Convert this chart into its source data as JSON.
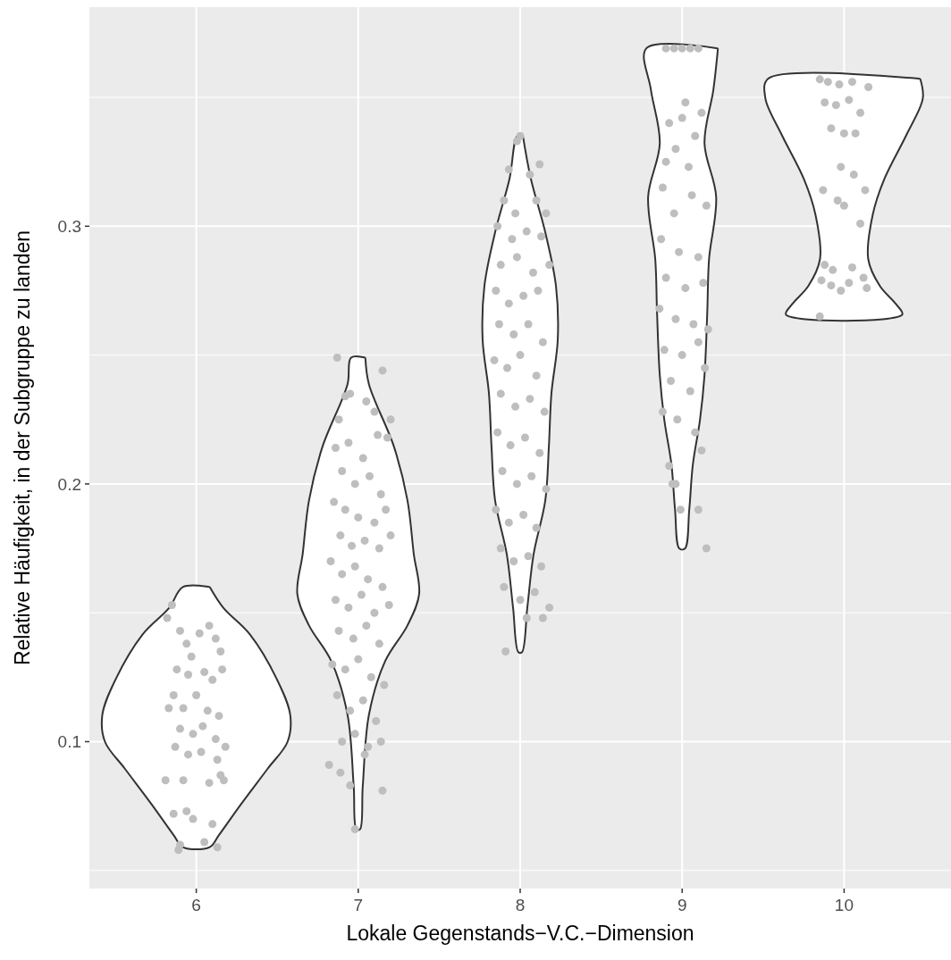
{
  "chart_data": {
    "type": "scatter",
    "xlabel": "Lokale Gegenstands−V.C.−Dimension",
    "ylabel": "Relative Häufigkeit, in der Subgruppe zu landen",
    "xlim": [
      5.34,
      10.66
    ],
    "ylim": [
      0.043,
      0.385
    ],
    "xticks": [
      6,
      7,
      8,
      9,
      10
    ],
    "yticks": [
      {
        "value": 0.05,
        "label": null
      },
      0.1,
      {
        "value": 0.15,
        "label": null
      },
      0.2,
      {
        "value": 0.25,
        "label": null
      },
      0.3,
      {
        "value": 0.35,
        "label": null
      }
    ],
    "grid": true,
    "series": [
      {
        "type": "area",
        "color": "#333333",
        "x": [
          6.083,
          6.166,
          6.331,
          6.497,
          6.58,
          6.564,
          6.442,
          6.276,
          6.138,
          6.083,
          5.917,
          5.862,
          5.724,
          5.558,
          5.436,
          5.42,
          5.503,
          5.669,
          5.834,
          5.917,
          6.083
        ],
        "values": [
          0.16,
          0.152,
          0.1416,
          0.1243,
          0.1104,
          0.1,
          0.0896,
          0.0757,
          0.0636,
          0.0591,
          0.0591,
          0.0636,
          0.0757,
          0.0896,
          0.1,
          0.1104,
          0.1243,
          0.1416,
          0.152,
          0.16,
          0.16
        ]
      },
      {
        "type": "area",
        "color": "#333333",
        "x": [
          7.044,
          7.066,
          7.221,
          7.304,
          7.343,
          7.376,
          7.304,
          7.166,
          7.066,
          7.028,
          7.011,
          6.989,
          6.972,
          6.934,
          6.834,
          6.696,
          6.624,
          6.657,
          6.696,
          6.779,
          6.934,
          6.956,
          7.044
        ],
        "values": [
          0.249,
          0.2387,
          0.2144,
          0.1936,
          0.1728,
          0.1572,
          0.1451,
          0.1312,
          0.1104,
          0.0827,
          0.066,
          0.066,
          0.0827,
          0.1104,
          0.1312,
          0.1451,
          0.1572,
          0.1728,
          0.1936,
          0.2144,
          0.2387,
          0.249,
          0.249
        ]
      },
      {
        "type": "area",
        "color": "#333333",
        "x": [
          8.017,
          8.066,
          8.155,
          8.221,
          8.232,
          8.193,
          8.177,
          8.155,
          8.083,
          8.044,
          8.011,
          7.989,
          7.956,
          7.917,
          7.845,
          7.823,
          7.807,
          7.768,
          7.779,
          7.845,
          7.934,
          7.983,
          8.017
        ],
        "values": [
          0.335,
          0.3184,
          0.2976,
          0.2768,
          0.256,
          0.2352,
          0.2144,
          0.1936,
          0.1728,
          0.152,
          0.1347,
          0.1347,
          0.152,
          0.1728,
          0.1936,
          0.2144,
          0.2352,
          0.256,
          0.2768,
          0.2976,
          0.3184,
          0.335,
          0.335
        ]
      },
      {
        "type": "area",
        "color": "#333333",
        "x": [
          9.221,
          9.193,
          9.138,
          9.21,
          9.166,
          9.155,
          9.138,
          9.11,
          9.066,
          9.044,
          9.017,
          8.983,
          8.956,
          8.934,
          8.89,
          8.862,
          8.845,
          8.834,
          8.79,
          8.862,
          8.807,
          8.779,
          9.221
        ],
        "values": [
          0.369,
          0.353,
          0.3322,
          0.3114,
          0.2872,
          0.2664,
          0.2421,
          0.2248,
          0.2075,
          0.1901,
          0.1749,
          0.1749,
          0.1901,
          0.2075,
          0.2248,
          0.2421,
          0.2664,
          0.2872,
          0.3114,
          0.3322,
          0.353,
          0.369,
          0.369
        ]
      },
      {
        "type": "area",
        "color": "#333333",
        "x": [
          10.47,
          10.486,
          10.387,
          10.249,
          10.177,
          10.149,
          10.221,
          10.32,
          10.359,
          9.641,
          9.68,
          9.779,
          9.851,
          9.823,
          9.751,
          9.613,
          9.514,
          9.53,
          10.47
        ],
        "values": [
          0.3572,
          0.3496,
          0.3357,
          0.3184,
          0.3045,
          0.2872,
          0.2768,
          0.2698,
          0.2657,
          0.2657,
          0.2698,
          0.2768,
          0.2872,
          0.3045,
          0.3184,
          0.3357,
          0.3496,
          0.3572,
          0.3572
        ]
      },
      {
        "color": "#bebebe",
        "x": [
          5.82,
          5.85,
          5.9,
          5.94,
          5.97,
          6.02,
          6.08,
          6.12,
          6.15,
          5.88,
          5.95,
          6.05,
          6.1,
          6.16,
          5.86,
          5.92,
          6.0,
          6.07,
          6.14,
          5.83,
          5.9,
          5.98,
          6.04,
          6.12,
          6.18,
          5.87,
          5.95,
          6.03,
          6.13,
          6.17,
          5.81,
          5.92,
          6.08,
          6.15,
          5.86,
          5.94,
          5.98,
          6.1,
          5.9,
          6.05,
          5.89,
          6.13,
          6.87,
          6.92,
          6.95,
          7.05,
          7.15,
          6.88,
          7.1,
          7.2,
          6.86,
          6.94,
          7.03,
          7.12,
          7.18,
          6.9,
          6.98,
          7.07,
          7.14,
          6.85,
          6.92,
          7.0,
          7.1,
          7.17,
          6.89,
          6.96,
          7.04,
          7.13,
          7.2,
          6.83,
          6.9,
          6.98,
          7.06,
          7.15,
          6.86,
          6.94,
          7.02,
          7.1,
          7.19,
          6.88,
          6.97,
          7.05,
          7.13,
          6.84,
          6.92,
          7.0,
          7.08,
          7.16,
          6.87,
          6.95,
          7.03,
          7.11,
          6.9,
          6.98,
          7.06,
          7.14,
          6.82,
          6.89,
          6.95,
          7.04,
          7.15,
          6.98,
          8.0,
          7.98,
          7.93,
          8.06,
          8.12,
          7.9,
          7.97,
          8.1,
          8.16,
          7.86,
          7.95,
          8.04,
          8.13,
          7.88,
          7.98,
          8.08,
          8.18,
          7.85,
          7.93,
          8.02,
          8.11,
          7.87,
          7.96,
          8.05,
          8.14,
          7.84,
          7.92,
          8.0,
          8.1,
          7.88,
          7.97,
          8.06,
          8.15,
          7.86,
          7.94,
          8.03,
          8.12,
          7.89,
          7.98,
          8.07,
          8.16,
          7.85,
          7.93,
          8.02,
          8.1,
          7.88,
          7.96,
          8.05,
          8.13,
          7.9,
          8.0,
          8.09,
          8.18,
          8.04,
          8.14,
          7.91,
          8.9,
          8.95,
          9.0,
          9.05,
          9.1,
          9.02,
          8.92,
          9.0,
          9.12,
          8.96,
          9.08,
          8.9,
          9.04,
          9.15,
          8.88,
          8.95,
          9.06,
          8.87,
          8.98,
          9.1,
          8.9,
          9.02,
          9.13,
          8.86,
          8.96,
          9.07,
          9.16,
          8.89,
          9.0,
          9.1,
          8.93,
          9.05,
          9.14,
          8.88,
          8.97,
          9.08,
          9.12,
          8.92,
          8.96,
          8.94,
          8.99,
          9.1,
          9.15,
          9.85,
          9.9,
          9.97,
          10.05,
          10.15,
          9.88,
          9.95,
          10.03,
          10.1,
          9.92,
          10.0,
          10.07,
          9.98,
          10.06,
          9.87,
          10.13,
          10.0,
          9.96,
          10.1,
          9.88,
          9.93,
          10.05,
          10.12,
          9.86,
          9.92,
          9.98,
          10.03,
          10.14,
          9.85
        ],
        "values": [
          0.148,
          0.153,
          0.143,
          0.138,
          0.133,
          0.142,
          0.145,
          0.14,
          0.135,
          0.128,
          0.126,
          0.127,
          0.124,
          0.128,
          0.118,
          0.113,
          0.118,
          0.112,
          0.11,
          0.113,
          0.105,
          0.103,
          0.106,
          0.101,
          0.098,
          0.098,
          0.095,
          0.096,
          0.093,
          0.085,
          0.085,
          0.085,
          0.084,
          0.087,
          0.072,
          0.073,
          0.07,
          0.068,
          0.06,
          0.061,
          0.058,
          0.059,
          0.249,
          0.234,
          0.235,
          0.232,
          0.244,
          0.225,
          0.228,
          0.225,
          0.214,
          0.216,
          0.21,
          0.219,
          0.218,
          0.205,
          0.2,
          0.203,
          0.196,
          0.193,
          0.19,
          0.187,
          0.185,
          0.19,
          0.18,
          0.176,
          0.178,
          0.175,
          0.18,
          0.17,
          0.165,
          0.168,
          0.163,
          0.16,
          0.155,
          0.152,
          0.157,
          0.15,
          0.153,
          0.143,
          0.14,
          0.145,
          0.138,
          0.13,
          0.128,
          0.132,
          0.125,
          0.122,
          0.118,
          0.112,
          0.116,
          0.108,
          0.1,
          0.103,
          0.098,
          0.1,
          0.091,
          0.088,
          0.083,
          0.095,
          0.081,
          0.066,
          0.335,
          0.333,
          0.322,
          0.32,
          0.324,
          0.31,
          0.305,
          0.31,
          0.305,
          0.3,
          0.295,
          0.298,
          0.296,
          0.285,
          0.288,
          0.282,
          0.285,
          0.275,
          0.27,
          0.273,
          0.275,
          0.262,
          0.258,
          0.262,
          0.255,
          0.248,
          0.245,
          0.25,
          0.242,
          0.235,
          0.23,
          0.233,
          0.228,
          0.22,
          0.215,
          0.218,
          0.212,
          0.205,
          0.2,
          0.203,
          0.198,
          0.19,
          0.185,
          0.188,
          0.183,
          0.175,
          0.17,
          0.172,
          0.168,
          0.16,
          0.155,
          0.158,
          0.152,
          0.148,
          0.148,
          0.135,
          0.369,
          0.369,
          0.369,
          0.369,
          0.369,
          0.348,
          0.34,
          0.342,
          0.344,
          0.33,
          0.335,
          0.325,
          0.323,
          0.308,
          0.315,
          0.305,
          0.312,
          0.295,
          0.29,
          0.288,
          0.28,
          0.276,
          0.278,
          0.268,
          0.264,
          0.262,
          0.26,
          0.252,
          0.25,
          0.255,
          0.24,
          0.236,
          0.245,
          0.228,
          0.225,
          0.22,
          0.213,
          0.207,
          0.2,
          0.2,
          0.19,
          0.19,
          0.175,
          0.357,
          0.356,
          0.355,
          0.356,
          0.354,
          0.348,
          0.347,
          0.349,
          0.344,
          0.338,
          0.336,
          0.336,
          0.323,
          0.32,
          0.314,
          0.314,
          0.308,
          0.31,
          0.301,
          0.285,
          0.283,
          0.284,
          0.28,
          0.279,
          0.277,
          0.275,
          0.278,
          0.276,
          0.265
        ]
      }
    ]
  }
}
